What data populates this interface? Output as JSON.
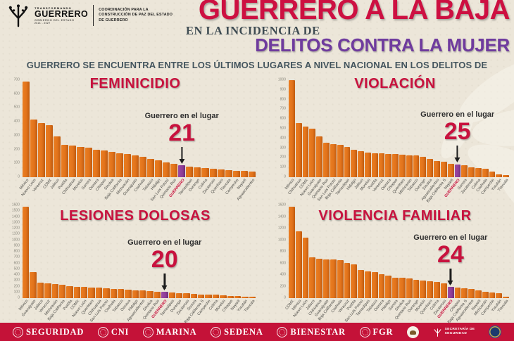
{
  "header": {
    "logo": {
      "brand_top": "TRANSFORMANDO",
      "brand": "GUERRERO",
      "brand_sub": "GOBIERNO DEL ESTADO",
      "brand_years": "2021 - 2027",
      "org": "COORDINACIÓN PARA LA CONSTRUCCIÓN DE PAZ DEL ESTADO DE GUERRERO"
    },
    "title_line1": "GUERRERO A LA BAJA",
    "title_line2": "EN LA INCIDENCIA DE",
    "title_line3": "DELITOS CONTRA LA MUJER",
    "subtitle": "GUERRERO SE ENCUENTRA ENTRE LOS ÚLTIMOS LUGARES A NIVEL NACIONAL EN LOS DELITOS DE"
  },
  "annotation_label": "Guerrero en el lugar",
  "colors": {
    "title_red": "#CD1041",
    "title_purple": "#6F3B9E",
    "chart_title_red": "#C8123E",
    "bar_orange": "#E2731B",
    "bar_highlight_purple": "#8E3D97",
    "footer_bg": "#C41238",
    "paper_bg": "#ece6d9",
    "subtitle_slate": "#44555E"
  },
  "chart_data": [
    {
      "type": "bar",
      "title": "FEMINICIDIO",
      "guerrero_rank": 21,
      "highlight_index": 20,
      "ylim": [
        0,
        700
      ],
      "ystep": 100,
      "legend": "none",
      "grid": false,
      "categories": [
        "México",
        "Nuevo León",
        "Veracruz",
        "CDMX",
        "Jalisco",
        "Puebla",
        "Chihuahua",
        "Morelos",
        "Sonora",
        "Oaxaca",
        "Chiapas",
        "Sinaloa",
        "Baja California",
        "Michoacán",
        "Guanajuato",
        "Coahuila",
        "Tabasco",
        "Hidalgo",
        "San Luis Potosí",
        "Quintana Roo",
        "GUERRERO",
        "Tamaulipas",
        "Durango",
        "Colima",
        "Zacatecas",
        "Querétaro",
        "Tlaxcala",
        "Campeche",
        "Nayarit",
        "Aguascalientes"
      ],
      "values": [
        690,
        415,
        390,
        375,
        295,
        232,
        228,
        218,
        212,
        200,
        193,
        182,
        173,
        165,
        156,
        146,
        133,
        121,
        109,
        98,
        86,
        78,
        71,
        65,
        60,
        56,
        52,
        48,
        44,
        40
      ]
    },
    {
      "type": "bar",
      "title": "VIOLACIÓN",
      "guerrero_rank": 25,
      "highlight_index": 24,
      "ylim": [
        0,
        1000
      ],
      "ystep": 100,
      "legend": "none",
      "grid": false,
      "categories": [
        "México",
        "Chihuahua",
        "CDMX",
        "Nuevo León",
        "Guanajuato",
        "Quintana Roo",
        "San Luis Potosí",
        "Baja California",
        "Tamaulipas",
        "Hidalgo",
        "Jalisco",
        "Morelos",
        "Puebla",
        "Veracruz",
        "Oaxaca",
        "Chiapas",
        "Querétaro",
        "Michoacán",
        "Tabasco",
        "Durango",
        "Sinaloa",
        "Aguascalientes",
        "Baja California S",
        "Nayarit",
        "GUERRERO",
        "Sonora",
        "Zacatecas",
        "Colima",
        "Coahuila",
        "Campeche",
        "Yucatán",
        "Tlaxcala"
      ],
      "values": [
        1000,
        560,
        520,
        500,
        420,
        352,
        340,
        334,
        310,
        284,
        266,
        256,
        250,
        246,
        241,
        236,
        232,
        228,
        222,
        210,
        186,
        170,
        160,
        141,
        134,
        120,
        101,
        95,
        90,
        55,
        32,
        20
      ]
    },
    {
      "type": "bar",
      "title": "LESIONES DOLOSAS",
      "guerrero_rank": 20,
      "highlight_index": 19,
      "ylim": [
        0,
        1600
      ],
      "ystep": 100,
      "legend": "none",
      "grid": false,
      "categories": [
        "México",
        "Guanajuato",
        "Jalisco",
        "Veracruz",
        "Michoacán",
        "Baja California",
        "Puebla",
        "CDMX",
        "Nuevo León",
        "Querétaro",
        "Chihuahua",
        "San Luis Potosí",
        "Coahuila",
        "Tabasco",
        "Oaxaca",
        "Hidalgo",
        "Aguascalientes",
        "Sinaloa",
        "Quintana Roo",
        "GUERRERO",
        "Tamaulipas",
        "Durango",
        "Zacatecas",
        "Sonora",
        "Baja California S",
        "Campeche",
        "Colima",
        "Morelos",
        "Chiapas",
        "Nayarit",
        "Yucatán",
        "Tlaxcala"
      ],
      "values": [
        1580,
        450,
        270,
        256,
        240,
        230,
        212,
        200,
        192,
        184,
        176,
        168,
        160,
        152,
        144,
        136,
        128,
        120,
        112,
        104,
        96,
        88,
        80,
        72,
        64,
        60,
        56,
        48,
        40,
        32,
        22,
        12
      ]
    },
    {
      "type": "bar",
      "title": "VIOLENCIA FAMILIAR",
      "guerrero_rank": 24,
      "highlight_index": 23,
      "ylim": [
        0,
        1600
      ],
      "ystep": 200,
      "legend": "none",
      "grid": false,
      "categories": [
        "CDMX",
        "México",
        "Nuevo León",
        "Jalisco",
        "Chihuahua",
        "Guanajuato",
        "Baja California",
        "Coahuila",
        "Veracruz",
        "Puebla",
        "San Luis Potosí",
        "Tamaulipas",
        "Tabasco",
        "Oaxaca",
        "Hidalgo",
        "Sonora",
        "Sinaloa",
        "Quintana Roo",
        "Durango",
        "Morelos",
        "Querétaro",
        "Colima",
        "Zacatecas",
        "GUERRERO",
        "Chiapas",
        "Baja California S",
        "Aguascalientes",
        "Nayarit",
        "Michoacán",
        "Campeche",
        "Yucatán",
        "Tlaxcala"
      ],
      "values": [
        1580,
        1150,
        1040,
        700,
        680,
        670,
        662,
        652,
        610,
        578,
        480,
        465,
        450,
        415,
        385,
        357,
        350,
        340,
        320,
        305,
        294,
        276,
        260,
        195,
        180,
        166,
        158,
        130,
        115,
        100,
        85,
        25
      ]
    }
  ],
  "footer": {
    "items": [
      {
        "type": "seal",
        "label": "SEGURIDAD"
      },
      {
        "type": "seal",
        "label": "CNI"
      },
      {
        "type": "seal",
        "label": "MARINA"
      },
      {
        "type": "seal",
        "label": "SEDENA"
      },
      {
        "type": "seal",
        "label": "BIENESTAR"
      },
      {
        "type": "seal",
        "label": "FGR"
      },
      {
        "type": "eagle-seal",
        "label": ""
      },
      {
        "type": "tree",
        "label": "SECRETARÍA DE SEGURIDAD",
        "lines": [
          "SECRETARÍA DE",
          "SEGURIDAD"
        ]
      },
      {
        "type": "blue-seal",
        "label": ""
      }
    ]
  }
}
